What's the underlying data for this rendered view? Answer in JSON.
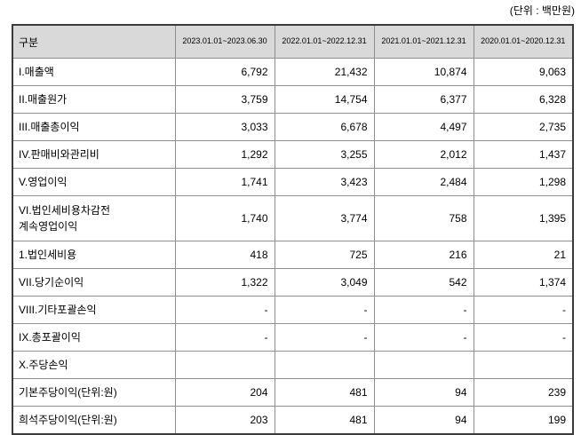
{
  "unit_label": "(단위 : 백만원)",
  "table": {
    "columns": [
      "구분",
      "2023.01.01~2023.06.30",
      "2022.01.01~2022.12.31",
      "2021.01.01~2021.12.31",
      "2020.01.01~2020.12.31"
    ],
    "rows": [
      {
        "label": "I.매출액",
        "values": [
          "6,792",
          "21,432",
          "10,874",
          "9,063"
        ]
      },
      {
        "label": "II.매출원가",
        "values": [
          "3,759",
          "14,754",
          "6,377",
          "6,328"
        ]
      },
      {
        "label": "III.매출총이익",
        "values": [
          "3,033",
          "6,678",
          "4,497",
          "2,735"
        ]
      },
      {
        "label": "IV.판매비와관리비",
        "values": [
          "1,292",
          "3,255",
          "2,012",
          "1,437"
        ]
      },
      {
        "label": "V.영업이익",
        "values": [
          "1,741",
          "3,423",
          "2,484",
          "1,298"
        ]
      },
      {
        "label": "VI.법인세비용차감전\n계속영업이익",
        "values": [
          "1,740",
          "3,774",
          "758",
          "1,395"
        ]
      },
      {
        "label": "1.법인세비용",
        "values": [
          "418",
          "725",
          "216",
          "21"
        ]
      },
      {
        "label": "VII.당기순이익",
        "values": [
          "1,322",
          "3,049",
          "542",
          "1,374"
        ]
      },
      {
        "label": "VIII.기타포괄손익",
        "values": [
          "-",
          "-",
          "-",
          "-"
        ]
      },
      {
        "label": "IX.총포괄이익",
        "values": [
          "-",
          "-",
          "-",
          "-"
        ]
      },
      {
        "label": "X.주당손익",
        "values": [
          "",
          "",
          "",
          ""
        ]
      },
      {
        "label": "기본주당이익(단위:원)",
        "values": [
          "204",
          "481",
          "94",
          "239"
        ]
      },
      {
        "label": "희석주당이익(단위:원)",
        "values": [
          "203",
          "481",
          "94",
          "199"
        ]
      }
    ]
  }
}
